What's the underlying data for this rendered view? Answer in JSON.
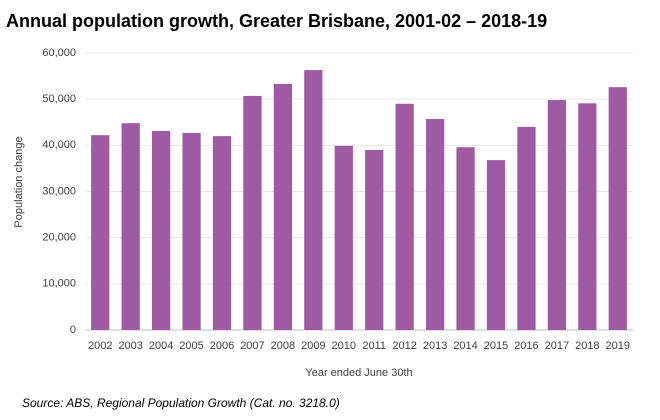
{
  "chart_data": {
    "type": "bar",
    "title": "Annual population growth, Greater Brisbane, 2001-02 – 2018-19",
    "y_label": "Population change",
    "x_label": "Year ended June 30th",
    "source": "Source:  ABS, Regional Population Growth (Cat. no. 3218.0)",
    "categories": [
      "2002",
      "2003",
      "2004",
      "2005",
      "2006",
      "2007",
      "2008",
      "2009",
      "2010",
      "2011",
      "2012",
      "2013",
      "2014",
      "2015",
      "2016",
      "2017",
      "2018",
      "2019"
    ],
    "values": [
      42200,
      44800,
      43100,
      42700,
      42000,
      50700,
      53300,
      56300,
      39900,
      39000,
      49000,
      45700,
      39600,
      36800,
      44000,
      49800,
      49100,
      52600
    ],
    "color": "#9e5aa3",
    "ylim": [
      0,
      60000
    ],
    "yticks": [
      0,
      {
        "value": 10000,
        "label": "10,000"
      },
      {
        "value": 20000,
        "label": "20,000"
      },
      {
        "value": 30000,
        "label": "30,000"
      },
      {
        "value": 40000,
        "label": "40,000"
      },
      {
        "value": 50000,
        "label": "50,000"
      },
      {
        "value": 60000,
        "label": "60,000"
      }
    ],
    "grid": true
  }
}
